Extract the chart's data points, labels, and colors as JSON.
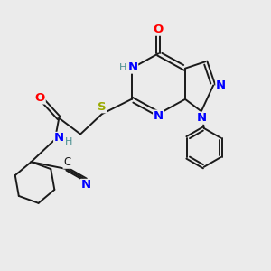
{
  "background_color": "#ebebeb",
  "bond_color": "#1a1a1a",
  "colors": {
    "N": "#0000ff",
    "O": "#ff0000",
    "S": "#9aaa00",
    "C": "#1a1a1a",
    "H": "#4a9090"
  },
  "figsize": [
    3.0,
    3.0
  ],
  "dpi": 100
}
